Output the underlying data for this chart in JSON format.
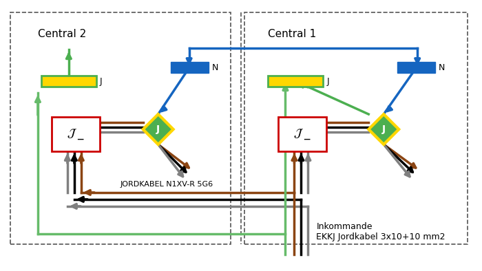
{
  "title": "",
  "bg_color": "#ffffff",
  "central2_label": "Central 2",
  "central1_label": "Central 1",
  "jordkabel_label": "JORDKABEL N1XV-R 5G6",
  "inkommande_label1": "Inkommande",
  "inkommande_label2": "EKKJ Jordkabel 3x10+10 mm2",
  "N_label": "N",
  "J_label": "J",
  "colors": {
    "green": "#4CAF50",
    "dark_green": "#2e7d32",
    "yellow": "#FFD700",
    "blue": "#1565C0",
    "brown": "#8B4513",
    "black": "#000000",
    "gray": "#808080",
    "red": "#CC0000",
    "orange": "#FF8C00",
    "light_green": "#66BB6A"
  }
}
